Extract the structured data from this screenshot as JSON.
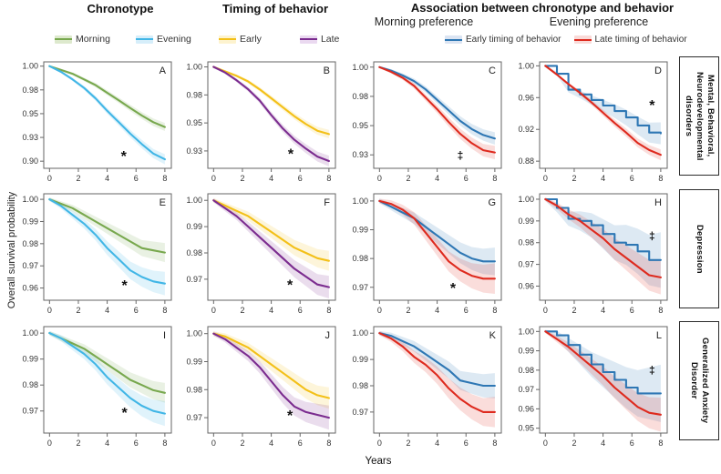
{
  "figure": {
    "ylabel": "Overall survival probability",
    "xlabel": "Years",
    "col_headers": [
      {
        "title": "Chronotype"
      },
      {
        "title": "Timing of behavior"
      },
      {
        "title": "Association between chronotype  and behavior"
      }
    ],
    "sub_headers": [
      "Morning preference",
      "Evening preference"
    ],
    "row_labels": [
      "Mental, Behavioral, Neurodevelopmental disorders",
      "Depression",
      "Generalized Anxiety Disorder"
    ],
    "legends": [
      {
        "items": [
          {
            "label": "Morning",
            "color": "#78a84e",
            "band": "#dde9cd"
          },
          {
            "label": "Evening",
            "color": "#41b6e6",
            "band": "#d6eefa"
          }
        ]
      },
      {
        "items": [
          {
            "label": "Early",
            "color": "#f3c018",
            "band": "#fdf3cf"
          },
          {
            "label": "Late",
            "color": "#7b2c8f",
            "band": "#ead9f0"
          }
        ]
      },
      {
        "items": [
          {
            "label": "Early timing of behavior",
            "color": "#2e77b4",
            "band": "#dbe4f2"
          },
          {
            "label": "Late timing of behavior",
            "color": "#de2a1e",
            "band": "#f9dad8"
          }
        ]
      }
    ]
  },
  "chart_data": [
    {
      "id": "A",
      "type": "line",
      "row": 0,
      "col": 0,
      "x": [
        0,
        0.8,
        1.6,
        2.4,
        3.2,
        4,
        4.8,
        5.6,
        6.4,
        7.2,
        8
      ],
      "xticks": [
        0,
        2,
        4,
        6,
        8
      ],
      "ytick_pos": [
        1.0,
        0.975,
        0.95,
        0.925,
        0.9
      ],
      "ytick_labels": [
        "1.00",
        "0.98",
        "0.95",
        "0.93",
        "0.90"
      ],
      "ylim": [
        0.8925,
        1.0045
      ],
      "series": [
        {
          "name": "Morning",
          "color": "#78a84e",
          "ci": 0.0035,
          "step": false,
          "values": [
            1.0,
            0.996,
            0.992,
            0.986,
            0.98,
            0.972,
            0.964,
            0.956,
            0.948,
            0.941,
            0.936
          ]
        },
        {
          "name": "Evening",
          "color": "#41b6e6",
          "ci": 0.0045,
          "step": false,
          "values": [
            1.0,
            0.994,
            0.986,
            0.977,
            0.966,
            0.953,
            0.941,
            0.929,
            0.918,
            0.908,
            0.902
          ]
        }
      ],
      "marker": {
        "text": "*",
        "x": 5.15,
        "y": 0.906
      }
    },
    {
      "id": "B",
      "type": "line",
      "row": 0,
      "col": 1,
      "x": [
        0,
        0.8,
        1.6,
        2.4,
        3.2,
        4,
        4.8,
        5.6,
        6.4,
        7.2,
        8
      ],
      "xticks": [
        0,
        2,
        4,
        6,
        8
      ],
      "ytick_pos": [
        1.0,
        0.975,
        0.95,
        0.925
      ],
      "ytick_labels": [
        "1.00",
        "0.98",
        "0.95",
        "0.93"
      ],
      "ylim": [
        0.9095,
        1.0045
      ],
      "series": [
        {
          "name": "Early",
          "color": "#f3c018",
          "ci": 0.003,
          "step": false,
          "values": [
            1.0,
            0.996,
            0.992,
            0.987,
            0.98,
            0.972,
            0.964,
            0.956,
            0.949,
            0.943,
            0.94
          ]
        },
        {
          "name": "Late",
          "color": "#7b2c8f",
          "ci": 0.004,
          "step": false,
          "values": [
            1.0,
            0.995,
            0.988,
            0.98,
            0.97,
            0.957,
            0.945,
            0.935,
            0.927,
            0.92,
            0.916
          ]
        }
      ],
      "marker": {
        "text": "*",
        "x": 5.35,
        "y": 0.923
      }
    },
    {
      "id": "C",
      "type": "line",
      "row": 0,
      "col": 2,
      "x": [
        0,
        0.8,
        1.6,
        2.4,
        3.2,
        4,
        4.8,
        5.6,
        6.4,
        7.2,
        8
      ],
      "xticks": [
        0,
        2,
        4,
        6,
        8
      ],
      "ytick_pos": [
        1.0,
        0.975,
        0.95,
        0.925
      ],
      "ytick_labels": [
        "1.00",
        "0.98",
        "0.95",
        "0.93"
      ],
      "ylim": [
        0.9135,
        1.0045
      ],
      "series": [
        {
          "name": "Early timing of behavior",
          "color": "#2e77b4",
          "ci": 0.0045,
          "step": false,
          "values": [
            1.0,
            0.997,
            0.993,
            0.988,
            0.981,
            0.972,
            0.963,
            0.954,
            0.947,
            0.942,
            0.939
          ]
        },
        {
          "name": "Late timing of behavior",
          "color": "#de2a1e",
          "ci": 0.005,
          "step": false,
          "values": [
            1.0,
            0.996,
            0.991,
            0.984,
            0.974,
            0.964,
            0.953,
            0.943,
            0.935,
            0.929,
            0.927
          ]
        }
      ],
      "marker": {
        "text": "‡",
        "x": 5.6,
        "y": 0.9245
      }
    },
    {
      "id": "D",
      "type": "line",
      "row": 0,
      "col": 3,
      "x": [
        0,
        0.8,
        1.6,
        2.4,
        3.2,
        4,
        4.8,
        5.6,
        6.4,
        7.2,
        8
      ],
      "xticks": [
        0,
        2,
        4,
        6,
        8
      ],
      "ytick_pos": [
        1.0,
        0.96,
        0.92,
        0.88
      ],
      "ytick_labels": [
        "1.00",
        "0.96",
        "0.92",
        "0.88"
      ],
      "ylim": [
        0.871,
        1.005
      ],
      "series": [
        {
          "name": "Early timing of behavior",
          "color": "#2e77b4",
          "ci": 0.013,
          "step": true,
          "values": [
            1.0,
            0.99,
            0.97,
            0.964,
            0.957,
            0.95,
            0.943,
            0.935,
            0.925,
            0.916,
            0.915
          ]
        },
        {
          "name": "Late timing of behavior",
          "color": "#de2a1e",
          "ci": 0.006,
          "step": false,
          "values": [
            1.0,
            0.989,
            0.977,
            0.966,
            0.954,
            0.941,
            0.928,
            0.916,
            0.903,
            0.894,
            0.888
          ]
        }
      ],
      "marker": {
        "text": "*",
        "x": 7.4,
        "y": 0.951
      }
    },
    {
      "id": "E",
      "type": "line",
      "row": 1,
      "col": 0,
      "x": [
        0,
        0.8,
        1.6,
        2.4,
        3.2,
        4,
        4.8,
        5.6,
        6.4,
        7.2,
        8
      ],
      "xticks": [
        0,
        2,
        4,
        6,
        8
      ],
      "ytick_pos": [
        1.0,
        0.99,
        0.98,
        0.97,
        0.96
      ],
      "ytick_labels": [
        "1.00",
        "0.99",
        "0.98",
        "0.97",
        "0.96"
      ],
      "ylim": [
        0.9545,
        1.0025
      ],
      "series": [
        {
          "name": "Morning",
          "color": "#78a84e",
          "ci": 0.0035,
          "step": false,
          "values": [
            1.0,
            0.998,
            0.996,
            0.993,
            0.99,
            0.987,
            0.984,
            0.981,
            0.978,
            0.977,
            0.976
          ]
        },
        {
          "name": "Evening",
          "color": "#41b6e6",
          "ci": 0.0045,
          "step": false,
          "values": [
            1.0,
            0.997,
            0.993,
            0.989,
            0.984,
            0.978,
            0.973,
            0.968,
            0.965,
            0.963,
            0.962
          ]
        }
      ],
      "marker": {
        "text": "*",
        "x": 5.2,
        "y": 0.9615
      }
    },
    {
      "id": "F",
      "type": "line",
      "row": 1,
      "col": 1,
      "x": [
        0,
        0.8,
        1.6,
        2.4,
        3.2,
        4,
        4.8,
        5.6,
        6.4,
        7.2,
        8
      ],
      "xticks": [
        0,
        2,
        4,
        6,
        8
      ],
      "ytick_pos": [
        1.0,
        0.99,
        0.98,
        0.97
      ],
      "ytick_labels": [
        "1.00",
        "0.99",
        "0.98",
        "0.97"
      ],
      "ylim": [
        0.962,
        1.0025
      ],
      "series": [
        {
          "name": "Early",
          "color": "#f3c018",
          "ci": 0.003,
          "step": false,
          "values": [
            1.0,
            0.998,
            0.996,
            0.994,
            0.991,
            0.988,
            0.985,
            0.982,
            0.98,
            0.978,
            0.977
          ]
        },
        {
          "name": "Late",
          "color": "#7b2c8f",
          "ci": 0.0035,
          "step": false,
          "values": [
            1.0,
            0.997,
            0.994,
            0.99,
            0.986,
            0.982,
            0.978,
            0.974,
            0.971,
            0.968,
            0.967
          ]
        }
      ],
      "marker": {
        "text": "*",
        "x": 5.3,
        "y": 0.968
      }
    },
    {
      "id": "G",
      "type": "line",
      "row": 1,
      "col": 2,
      "x": [
        0,
        0.8,
        1.6,
        2.4,
        3.2,
        4,
        4.8,
        5.6,
        6.4,
        7.2,
        8
      ],
      "xticks": [
        0,
        2,
        4,
        6,
        8
      ],
      "ytick_pos": [
        1.0,
        0.99,
        0.98,
        0.97
      ],
      "ytick_labels": [
        "1.00",
        "0.99",
        "0.98",
        "0.97"
      ],
      "ylim": [
        0.9655,
        1.0025
      ],
      "series": [
        {
          "name": "Early timing of behavior",
          "color": "#2e77b4",
          "ci": 0.004,
          "step": false,
          "values": [
            1.0,
            0.998,
            0.996,
            0.994,
            0.991,
            0.988,
            0.985,
            0.982,
            0.98,
            0.979,
            0.979
          ]
        },
        {
          "name": "Late timing of behavior",
          "color": "#de2a1e",
          "ci": 0.0045,
          "step": false,
          "values": [
            1.0,
            0.999,
            0.997,
            0.994,
            0.989,
            0.984,
            0.979,
            0.976,
            0.974,
            0.973,
            0.973
          ]
        }
      ],
      "marker": {
        "text": "*",
        "x": 5.1,
        "y": 0.97
      }
    },
    {
      "id": "H",
      "type": "line",
      "row": 1,
      "col": 3,
      "x": [
        0,
        0.8,
        1.6,
        2.4,
        3.2,
        4,
        4.8,
        5.6,
        6.4,
        7.2,
        8
      ],
      "xticks": [
        0,
        2,
        4,
        6,
        8
      ],
      "ytick_pos": [
        1.0,
        0.99,
        0.98,
        0.97,
        0.96
      ],
      "ytick_labels": [
        "1.00",
        "0.99",
        "0.98",
        "0.97",
        "0.96"
      ],
      "ylim": [
        0.9535,
        1.0025
      ],
      "series": [
        {
          "name": "Early timing of behavior",
          "color": "#2e77b4",
          "ci": 0.012,
          "step": true,
          "values": [
            1.0,
            0.996,
            0.991,
            0.99,
            0.988,
            0.984,
            0.98,
            0.979,
            0.976,
            0.972,
            0.972
          ]
        },
        {
          "name": "Late timing of behavior",
          "color": "#de2a1e",
          "ci": 0.007,
          "step": false,
          "values": [
            1.0,
            0.997,
            0.993,
            0.99,
            0.986,
            0.982,
            0.977,
            0.973,
            0.969,
            0.965,
            0.964
          ]
        }
      ],
      "marker": {
        "text": "‡",
        "x": 7.4,
        "y": 0.983
      }
    },
    {
      "id": "I",
      "type": "line",
      "row": 2,
      "col": 0,
      "x": [
        0,
        0.8,
        1.6,
        2.4,
        3.2,
        4,
        4.8,
        5.6,
        6.4,
        7.2,
        8
      ],
      "xticks": [
        0,
        2,
        4,
        6,
        8
      ],
      "ytick_pos": [
        1.0,
        0.99,
        0.98,
        0.97
      ],
      "ytick_labels": [
        "1.00",
        "0.99",
        "0.98",
        "0.97"
      ],
      "ylim": [
        0.9615,
        1.0025
      ],
      "series": [
        {
          "name": "Morning",
          "color": "#78a84e",
          "ci": 0.003,
          "step": false,
          "values": [
            1.0,
            0.998,
            0.996,
            0.994,
            0.991,
            0.988,
            0.985,
            0.982,
            0.98,
            0.978,
            0.977
          ]
        },
        {
          "name": "Evening",
          "color": "#41b6e6",
          "ci": 0.004,
          "step": false,
          "values": [
            1.0,
            0.998,
            0.995,
            0.992,
            0.988,
            0.983,
            0.979,
            0.975,
            0.972,
            0.97,
            0.969
          ]
        }
      ],
      "marker": {
        "text": "*",
        "x": 5.2,
        "y": 0.9695
      }
    },
    {
      "id": "J",
      "type": "line",
      "row": 2,
      "col": 1,
      "x": [
        0,
        0.8,
        1.6,
        2.4,
        3.2,
        4,
        4.8,
        5.6,
        6.4,
        7.2,
        8
      ],
      "xticks": [
        0,
        2,
        4,
        6,
        8
      ],
      "ytick_pos": [
        1.0,
        0.99,
        0.98,
        0.97
      ],
      "ytick_labels": [
        "1.00",
        "0.99",
        "0.98",
        "0.97"
      ],
      "ylim": [
        0.9645,
        1.0025
      ],
      "series": [
        {
          "name": "Early",
          "color": "#f3c018",
          "ci": 0.003,
          "step": false,
          "values": [
            1.0,
            0.999,
            0.997,
            0.995,
            0.992,
            0.989,
            0.986,
            0.983,
            0.98,
            0.978,
            0.977
          ]
        },
        {
          "name": "Late",
          "color": "#7b2c8f",
          "ci": 0.0035,
          "step": false,
          "values": [
            1.0,
            0.998,
            0.995,
            0.992,
            0.988,
            0.983,
            0.978,
            0.974,
            0.972,
            0.971,
            0.97
          ]
        }
      ],
      "marker": {
        "text": "*",
        "x": 5.3,
        "y": 0.971
      }
    },
    {
      "id": "K",
      "type": "line",
      "row": 2,
      "col": 2,
      "x": [
        0,
        0.8,
        1.6,
        2.4,
        3.2,
        4,
        4.8,
        5.6,
        6.4,
        7.2,
        8
      ],
      "xticks": [
        0,
        2,
        4,
        6,
        8
      ],
      "ytick_pos": [
        1.0,
        0.99,
        0.98,
        0.97
      ],
      "ytick_labels": [
        "1.00",
        "0.99",
        "0.98",
        "0.97"
      ],
      "ylim": [
        0.962,
        1.0025
      ],
      "series": [
        {
          "name": "Early timing of behavior",
          "color": "#2e77b4",
          "ci": 0.004,
          "step": false,
          "values": [
            1.0,
            0.999,
            0.997,
            0.995,
            0.992,
            0.989,
            0.986,
            0.982,
            0.981,
            0.98,
            0.98
          ]
        },
        {
          "name": "Late timing of behavior",
          "color": "#de2a1e",
          "ci": 0.005,
          "step": false,
          "values": [
            1.0,
            0.998,
            0.995,
            0.991,
            0.988,
            0.984,
            0.979,
            0.975,
            0.972,
            0.97,
            0.97
          ]
        }
      ],
      "marker": null
    },
    {
      "id": "L",
      "type": "line",
      "row": 2,
      "col": 3,
      "x": [
        0,
        0.8,
        1.6,
        2.4,
        3.2,
        4,
        4.8,
        5.6,
        6.4,
        7.2,
        8
      ],
      "xticks": [
        0,
        2,
        4,
        6,
        8
      ],
      "ytick_pos": [
        1.0,
        0.99,
        0.98,
        0.97,
        0.96,
        0.95
      ],
      "ytick_labels": [
        "1.00",
        "0.99",
        "0.98",
        "0.97",
        "0.96",
        "0.95"
      ],
      "ylim": [
        0.9475,
        1.0025
      ],
      "series": [
        {
          "name": "Early timing of behavior",
          "color": "#2e77b4",
          "ci": 0.014,
          "step": true,
          "values": [
            1.0,
            0.998,
            0.993,
            0.988,
            0.983,
            0.979,
            0.975,
            0.971,
            0.968,
            0.968,
            0.968
          ]
        },
        {
          "name": "Late timing of behavior",
          "color": "#de2a1e",
          "ci": 0.008,
          "step": false,
          "values": [
            1.0,
            0.996,
            0.992,
            0.987,
            0.982,
            0.977,
            0.971,
            0.966,
            0.961,
            0.958,
            0.957
          ]
        }
      ],
      "marker": {
        "text": "‡",
        "x": 7.4,
        "y": 0.98
      }
    }
  ]
}
